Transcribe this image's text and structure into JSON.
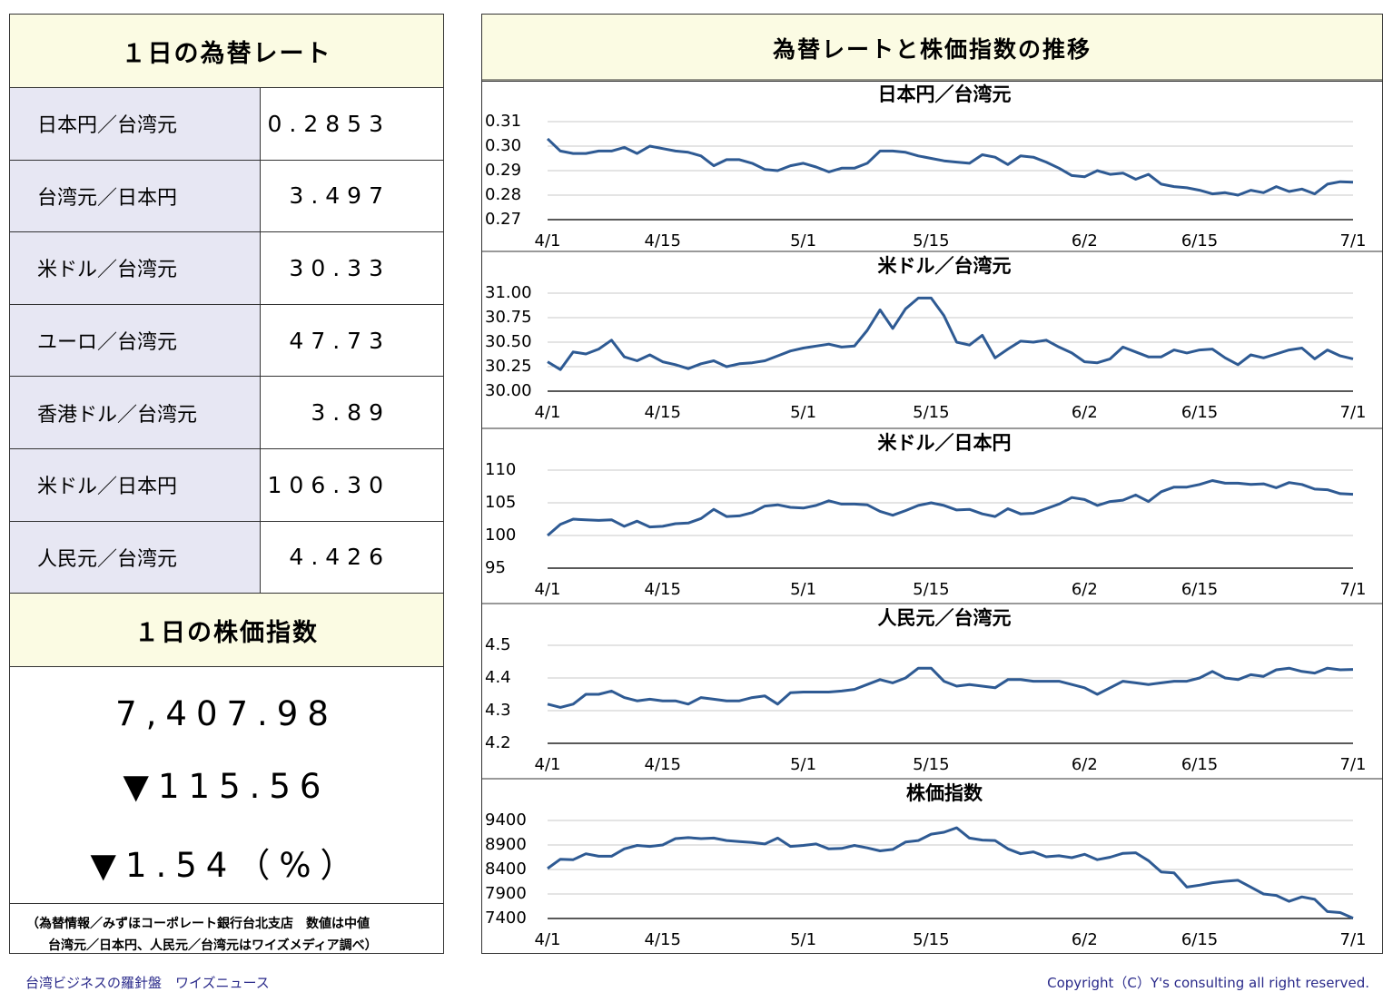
{
  "rates": {
    "title": "１日の為替レート",
    "rows": [
      [
        "日本円／台湾元",
        "0.2853"
      ],
      [
        "台湾元／日本円",
        "3.497"
      ],
      [
        "米ドル／台湾元",
        "30.33"
      ],
      [
        "ユーロ／台湾元",
        "47.73"
      ],
      [
        "香港ドル／台湾元",
        "3.89"
      ],
      [
        "米ドル／日本円",
        "106.30"
      ],
      [
        "人民元／台湾元",
        "4.426"
      ]
    ]
  },
  "stock": {
    "title": "１日の株価指数",
    "value": "7,407.98",
    "change": "▼115.56",
    "change_pct": "▼1.54（%）"
  },
  "note": [
    "（為替情報／みずほコーポレート銀行台北支店　数値は中値",
    "台湾元／日本円、人民元／台湾元はワイズメディア調べ）"
  ],
  "charts_title": "為替レートと株価指数の推移",
  "footer": {
    "left": "台湾ビジネスの羅針盤　ワイズニュース",
    "right": "Copyright（C）Y's consulting all right reserved."
  },
  "chart_data": [
    {
      "type": "line",
      "title": "日本円／台湾元",
      "color": "#2e5a93",
      "grid": true,
      "categories": [
        "4/1",
        null,
        null,
        null,
        null,
        null,
        null,
        null,
        null,
        "4/15",
        null,
        null,
        null,
        null,
        null,
        null,
        null,
        null,
        null,
        null,
        "5/1",
        null,
        null,
        null,
        null,
        null,
        null,
        null,
        null,
        null,
        "5/15",
        null,
        null,
        null,
        null,
        null,
        null,
        null,
        null,
        null,
        null,
        null,
        "6/2",
        null,
        null,
        null,
        null,
        null,
        null,
        null,
        null,
        "6/15",
        null,
        null,
        null,
        null,
        null,
        null,
        null,
        null,
        null,
        null,
        null,
        "7/1"
      ],
      "values": [
        0.303,
        0.298,
        0.297,
        0.297,
        0.298,
        0.298,
        0.2995,
        0.297,
        0.3,
        0.299,
        0.298,
        0.2975,
        0.296,
        0.292,
        0.2945,
        0.2945,
        0.293,
        0.2905,
        0.29,
        0.292,
        0.293,
        0.2915,
        0.2895,
        0.291,
        0.291,
        0.293,
        0.298,
        0.298,
        0.2975,
        0.296,
        0.295,
        0.294,
        0.2935,
        0.293,
        0.2965,
        0.2955,
        0.2925,
        0.296,
        0.2955,
        0.2935,
        0.291,
        0.288,
        0.2875,
        0.29,
        0.2885,
        0.289,
        0.2865,
        0.2885,
        0.2845,
        0.2835,
        0.283,
        0.282,
        0.2805,
        0.281,
        0.28,
        0.282,
        0.281,
        0.2835,
        0.2815,
        0.2825,
        0.2805,
        0.2845,
        0.2855,
        0.2853
      ],
      "ylim": [
        0.27,
        0.31
      ],
      "yticks": [
        0.27,
        0.28,
        0.29,
        {
          "value": 0.3,
          "label": "0.30"
        },
        0.31
      ]
    },
    {
      "type": "line",
      "title": "米ドル／台湾元",
      "color": "#2e5a93",
      "grid": true,
      "categories": [
        "4/1",
        null,
        null,
        null,
        null,
        null,
        null,
        null,
        null,
        "4/15",
        null,
        null,
        null,
        null,
        null,
        null,
        null,
        null,
        null,
        null,
        "5/1",
        null,
        null,
        null,
        null,
        null,
        null,
        null,
        null,
        null,
        "5/15",
        null,
        null,
        null,
        null,
        null,
        null,
        null,
        null,
        null,
        null,
        null,
        "6/2",
        null,
        null,
        null,
        null,
        null,
        null,
        null,
        null,
        "6/15",
        null,
        null,
        null,
        null,
        null,
        null,
        null,
        null,
        null,
        null,
        null,
        "7/1"
      ],
      "values": [
        30.3,
        30.22,
        30.4,
        30.38,
        30.43,
        30.52,
        30.35,
        30.31,
        30.37,
        30.3,
        30.27,
        30.23,
        30.28,
        30.31,
        30.25,
        30.28,
        30.29,
        30.31,
        30.36,
        30.41,
        30.44,
        30.46,
        30.48,
        30.45,
        30.46,
        30.62,
        30.83,
        30.64,
        30.84,
        30.95,
        30.95,
        30.77,
        30.5,
        30.47,
        30.57,
        30.34,
        30.43,
        30.51,
        30.5,
        30.52,
        30.45,
        30.39,
        30.3,
        30.29,
        30.33,
        30.45,
        30.4,
        30.35,
        30.35,
        30.42,
        30.39,
        30.42,
        30.43,
        30.34,
        30.27,
        30.37,
        30.34,
        30.38,
        30.42,
        30.44,
        30.33,
        30.42,
        30.36,
        30.33
      ],
      "ylim": [
        30,
        31
      ],
      "yticks": [
        {
          "value": 30,
          "label": "30.00"
        },
        30.25,
        {
          "value": 30.5,
          "label": "30.50"
        },
        30.75,
        {
          "value": 31,
          "label": "31.00"
        }
      ]
    },
    {
      "type": "line",
      "title": "米ドル／日本円",
      "color": "#2e5a93",
      "grid": true,
      "categories": [
        "4/1",
        null,
        null,
        null,
        null,
        null,
        null,
        null,
        null,
        "4/15",
        null,
        null,
        null,
        null,
        null,
        null,
        null,
        null,
        null,
        null,
        "5/1",
        null,
        null,
        null,
        null,
        null,
        null,
        null,
        null,
        null,
        "5/15",
        null,
        null,
        null,
        null,
        null,
        null,
        null,
        null,
        null,
        null,
        null,
        "6/2",
        null,
        null,
        null,
        null,
        null,
        null,
        null,
        null,
        "6/15",
        null,
        null,
        null,
        null,
        null,
        null,
        null,
        null,
        null,
        null,
        null,
        "7/1"
      ],
      "values": [
        100.0,
        101.7,
        102.5,
        102.4,
        102.3,
        102.4,
        101.4,
        102.2,
        101.3,
        101.4,
        101.8,
        101.9,
        102.6,
        104.0,
        102.9,
        103.0,
        103.5,
        104.5,
        104.7,
        104.3,
        104.2,
        104.6,
        105.3,
        104.8,
        104.8,
        104.7,
        103.7,
        103.1,
        103.8,
        104.6,
        105.0,
        104.6,
        103.9,
        104.0,
        103.3,
        102.9,
        104.1,
        103.3,
        103.4,
        104.1,
        104.8,
        105.8,
        105.5,
        104.6,
        105.2,
        105.4,
        106.2,
        105.2,
        106.7,
        107.4,
        107.4,
        107.8,
        108.4,
        108.0,
        108.0,
        107.8,
        107.9,
        107.3,
        108.1,
        107.8,
        107.1,
        107.0,
        106.4,
        106.3
      ],
      "ylim": [
        95,
        110
      ],
      "yticks": [
        95,
        100,
        105,
        110
      ]
    },
    {
      "type": "line",
      "title": "人民元／台湾元",
      "color": "#2e5a93",
      "grid": true,
      "categories": [
        "4/1",
        null,
        null,
        null,
        null,
        null,
        null,
        null,
        null,
        "4/15",
        null,
        null,
        null,
        null,
        null,
        null,
        null,
        null,
        null,
        null,
        "5/1",
        null,
        null,
        null,
        null,
        null,
        null,
        null,
        null,
        null,
        "5/15",
        null,
        null,
        null,
        null,
        null,
        null,
        null,
        null,
        null,
        null,
        null,
        "6/2",
        null,
        null,
        null,
        null,
        null,
        null,
        null,
        null,
        "6/15",
        null,
        null,
        null,
        null,
        null,
        null,
        null,
        null,
        null,
        null,
        null,
        "7/1"
      ],
      "values": [
        4.32,
        4.31,
        4.32,
        4.35,
        4.35,
        4.36,
        4.34,
        4.33,
        4.335,
        4.33,
        4.33,
        4.32,
        4.34,
        4.335,
        4.33,
        4.33,
        4.34,
        4.345,
        4.32,
        4.355,
        4.357,
        4.357,
        4.357,
        4.36,
        4.365,
        4.38,
        4.395,
        4.385,
        4.4,
        4.43,
        4.43,
        4.39,
        4.375,
        4.38,
        4.375,
        4.37,
        4.395,
        4.395,
        4.39,
        4.39,
        4.39,
        4.38,
        4.37,
        4.35,
        4.37,
        4.39,
        4.385,
        4.38,
        4.385,
        4.39,
        4.39,
        4.4,
        4.42,
        4.4,
        4.395,
        4.41,
        4.405,
        4.425,
        4.43,
        4.42,
        4.415,
        4.43,
        4.425,
        4.426
      ],
      "ylim": [
        4.2,
        4.5
      ],
      "yticks": [
        4.2,
        4.3,
        4.4,
        4.5
      ]
    },
    {
      "type": "line",
      "title": "株価指数",
      "color": "#2e5a93",
      "grid": true,
      "categories": [
        "4/1",
        null,
        null,
        null,
        null,
        null,
        null,
        null,
        null,
        "4/15",
        null,
        null,
        null,
        null,
        null,
        null,
        null,
        null,
        null,
        null,
        "5/1",
        null,
        null,
        null,
        null,
        null,
        null,
        null,
        null,
        null,
        "5/15",
        null,
        null,
        null,
        null,
        null,
        null,
        null,
        null,
        null,
        null,
        null,
        "6/2",
        null,
        null,
        null,
        null,
        null,
        null,
        null,
        null,
        "6/15",
        null,
        null,
        null,
        null,
        null,
        null,
        null,
        null,
        null,
        null,
        null,
        "7/1"
      ],
      "values": [
        8420,
        8610,
        8600,
        8720,
        8670,
        8670,
        8820,
        8890,
        8870,
        8900,
        9030,
        9050,
        9030,
        9040,
        8990,
        8970,
        8950,
        8920,
        9040,
        8870,
        8890,
        8920,
        8820,
        8830,
        8890,
        8840,
        8780,
        8810,
        8960,
        8990,
        9120,
        9160,
        9250,
        9040,
        9000,
        8990,
        8820,
        8720,
        8760,
        8660,
        8680,
        8640,
        8710,
        8600,
        8650,
        8730,
        8740,
        8580,
        8350,
        8330,
        8040,
        8080,
        8130,
        8160,
        8180,
        8040,
        7900,
        7870,
        7750,
        7840,
        7790,
        7540,
        7520,
        7407.98
      ],
      "ylim": [
        7400,
        9400
      ],
      "yticks": [
        7400,
        7900,
        8400,
        8900,
        9400
      ]
    }
  ]
}
